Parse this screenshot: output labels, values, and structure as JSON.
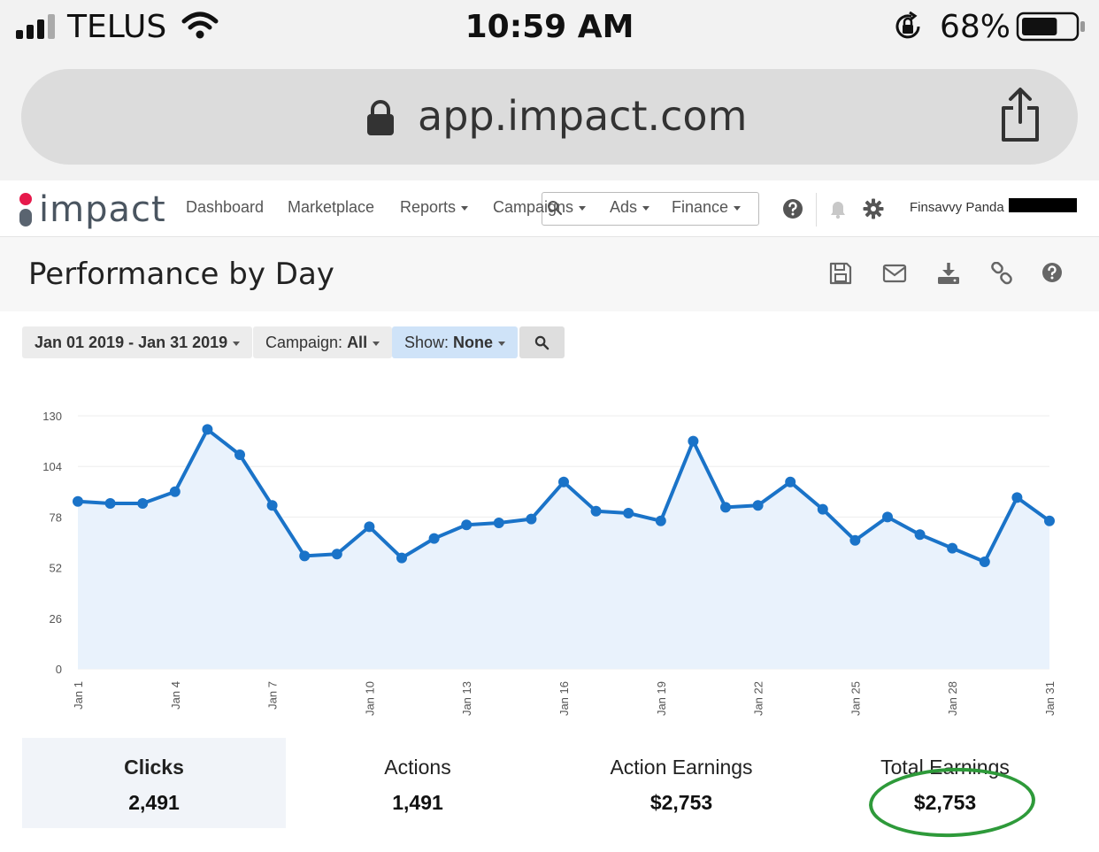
{
  "status_bar": {
    "carrier": "TELUS",
    "time": "10:59 AM",
    "battery_percent": "68%",
    "battery_level": 0.68
  },
  "browser": {
    "url": "app.impact.com"
  },
  "nav": {
    "logo_text": "impact",
    "items": [
      {
        "label": "Dashboard"
      },
      {
        "label": "Marketplace"
      },
      {
        "label": "Reports"
      },
      {
        "label": "Campaigns"
      },
      {
        "label": "Ads"
      },
      {
        "label": "Finance"
      }
    ],
    "user_name": "Finsavvy Panda"
  },
  "page": {
    "title": "Performance by Day"
  },
  "filters": {
    "date_range": "Jan 01 2019 - Jan 31 2019",
    "campaign_label": "Campaign:",
    "campaign_value": "All",
    "show_label": "Show:",
    "show_value": "None"
  },
  "chart_data": {
    "type": "area",
    "x": [
      "Jan 1",
      "Jan 2",
      "Jan 3",
      "Jan 4",
      "Jan 5",
      "Jan 6",
      "Jan 7",
      "Jan 8",
      "Jan 9",
      "Jan 10",
      "Jan 11",
      "Jan 12",
      "Jan 13",
      "Jan 14",
      "Jan 15",
      "Jan 16",
      "Jan 17",
      "Jan 18",
      "Jan 19",
      "Jan 20",
      "Jan 21",
      "Jan 22",
      "Jan 23",
      "Jan 24",
      "Jan 25",
      "Jan 26",
      "Jan 27",
      "Jan 28",
      "Jan 29",
      "Jan 30",
      "Jan 31"
    ],
    "x_tick_labels": [
      "Jan 1",
      "Jan 4",
      "Jan 7",
      "Jan 10",
      "Jan 13",
      "Jan 16",
      "Jan 19",
      "Jan 22",
      "Jan 25",
      "Jan 28",
      "Jan 31"
    ],
    "values": [
      86,
      85,
      85,
      91,
      123,
      110,
      84,
      58,
      59,
      73,
      57,
      67,
      74,
      75,
      77,
      96,
      81,
      80,
      76,
      117,
      83,
      84,
      96,
      82,
      66,
      78,
      69,
      62,
      55,
      88,
      76
    ],
    "y_ticks": [
      0,
      26,
      52,
      78,
      104,
      130
    ],
    "ylim": [
      0,
      130
    ],
    "grid": true,
    "line_color": "#1a73c8",
    "fill_color": "#e9f2fc"
  },
  "stats": [
    {
      "label": "Clicks",
      "value": "2,491"
    },
    {
      "label": "Actions",
      "value": "1,491"
    },
    {
      "label": "Action Earnings",
      "value": "$2,753"
    },
    {
      "label": "Total Earnings",
      "value": "$2,753"
    }
  ],
  "colors": {
    "brand_red": "#e6194b",
    "accent_blue": "#1a73c8",
    "highlight_green": "#2e9a3a"
  }
}
